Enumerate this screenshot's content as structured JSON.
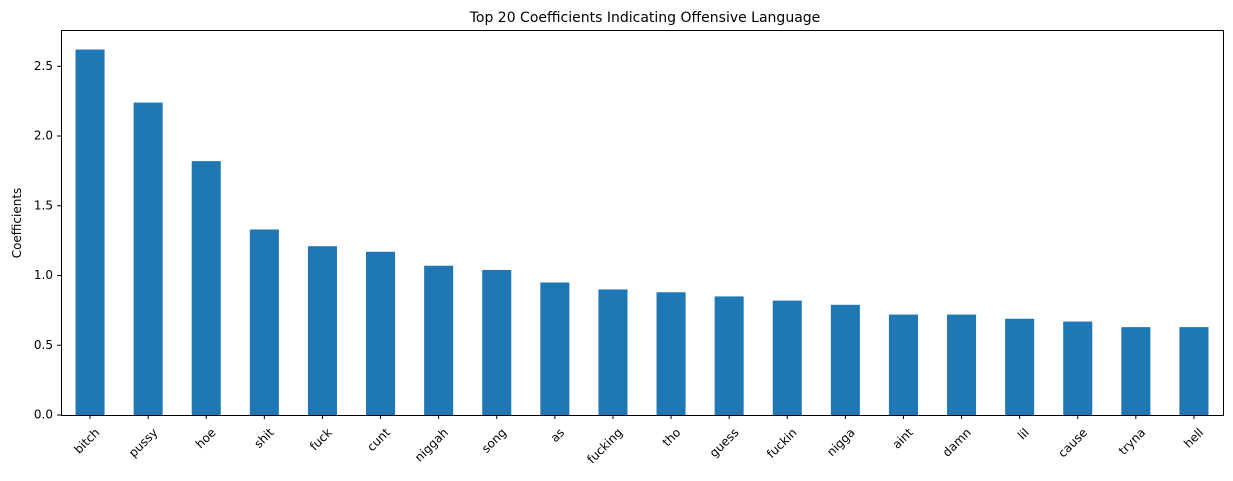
{
  "chart_data": {
    "type": "bar",
    "title": "Top 20 Coefficients Indicating Offensive Language",
    "xlabel": "",
    "ylabel": "Coefficients",
    "categories": [
      "bitch",
      "pussy",
      "hoe",
      "shit",
      "fuck",
      "cunt",
      "niggah",
      "song",
      "as",
      "fucking",
      "tho",
      "guess",
      "fuckin",
      "nigga",
      "aint",
      "damn",
      "lil",
      "cause",
      "tryna",
      "hell"
    ],
    "values": [
      2.62,
      2.24,
      1.82,
      1.33,
      1.21,
      1.17,
      1.07,
      1.04,
      0.95,
      0.9,
      0.88,
      0.85,
      0.82,
      0.79,
      0.72,
      0.72,
      0.69,
      0.67,
      0.63,
      0.63
    ],
    "ylim": [
      0,
      2.76
    ],
    "yticks": [
      0.0,
      0.5,
      1.0,
      1.5,
      2.0,
      2.5
    ],
    "ytick_labels": [
      "0.0",
      "0.5",
      "1.0",
      "1.5",
      "2.0",
      "2.5"
    ],
    "grid": false,
    "legend": "none",
    "bar_color": "#1f77b4",
    "x_tick_rotation_deg": 45
  }
}
